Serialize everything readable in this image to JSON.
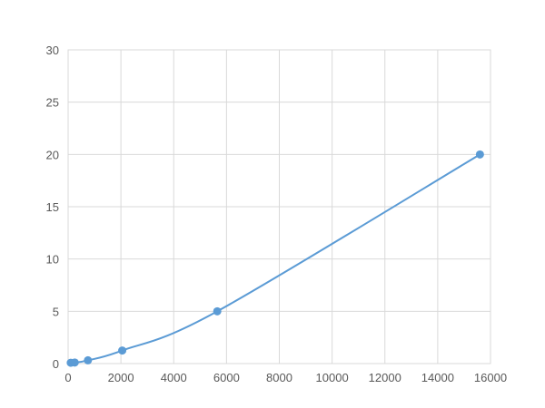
{
  "chart_data": {
    "type": "scatter",
    "title": "",
    "xlabel": "",
    "ylabel": "",
    "xlim": [
      0,
      16000
    ],
    "ylim": [
      0,
      30
    ],
    "xticks": [
      "0",
      "2000",
      "4000",
      "6000",
      "8000",
      "10000",
      "12000",
      "14000",
      "16000"
    ],
    "yticks": [
      "0",
      "5",
      "10",
      "15",
      "20",
      "25",
      "30"
    ],
    "grid": true,
    "color": "#5b9bd5",
    "series": [
      {
        "x": [
          100,
          250,
          750,
          2050,
          5650,
          15600
        ],
        "y": [
          0.08,
          0.1,
          0.31,
          1.25,
          5,
          20
        ]
      }
    ]
  }
}
